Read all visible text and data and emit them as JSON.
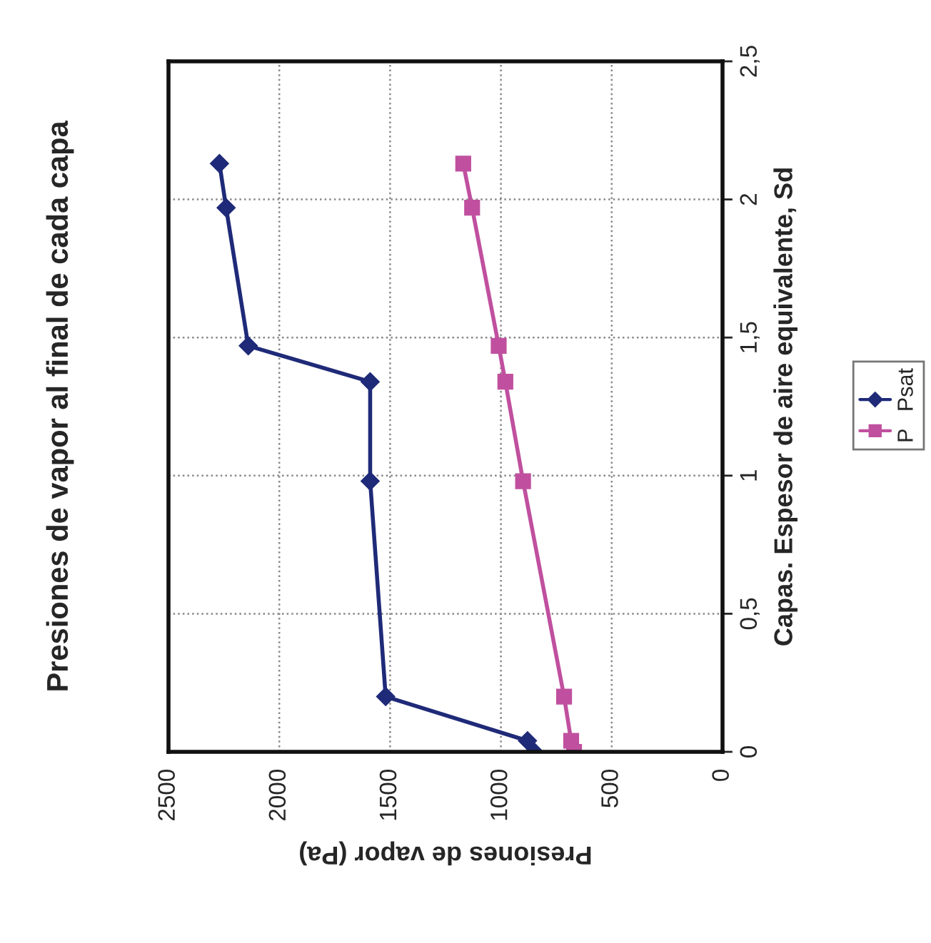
{
  "chart_data": {
    "type": "line",
    "title": "Presiones de vapor al final de cada capa",
    "xlabel": "Presiones de vapor (Pa)",
    "ylabel": "Capas. Espesor de aire equivalente, Sd",
    "series": [
      {
        "name": "Psat",
        "color": "#1f2a78",
        "marker": "diamond",
        "x": [
          850,
          880,
          1520,
          1590,
          1590,
          2140,
          2240,
          2270
        ],
        "values": [
          0,
          0.04,
          0.2,
          0.98,
          1.34,
          1.47,
          1.97,
          2.13
        ]
      },
      {
        "name": "P",
        "color": "#c0509f",
        "marker": "square",
        "x": [
          670,
          683,
          715,
          900,
          980,
          1010,
          1130,
          1170
        ],
        "values": [
          0,
          0.04,
          0.2,
          0.98,
          1.34,
          1.47,
          1.97,
          2.13
        ]
      }
    ],
    "xlim": [
      2500,
      0
    ],
    "xticks": [
      0,
      500,
      1000,
      1500,
      2000,
      2500
    ],
    "ylim": [
      0,
      2.5
    ],
    "yticks": [
      0,
      {
        "value": 0.5,
        "label": "0,5"
      },
      1,
      {
        "value": 1.5,
        "label": "1,5"
      },
      2,
      {
        "value": 2.5,
        "label": "2,5"
      }
    ],
    "grid": true,
    "legend": "right"
  }
}
